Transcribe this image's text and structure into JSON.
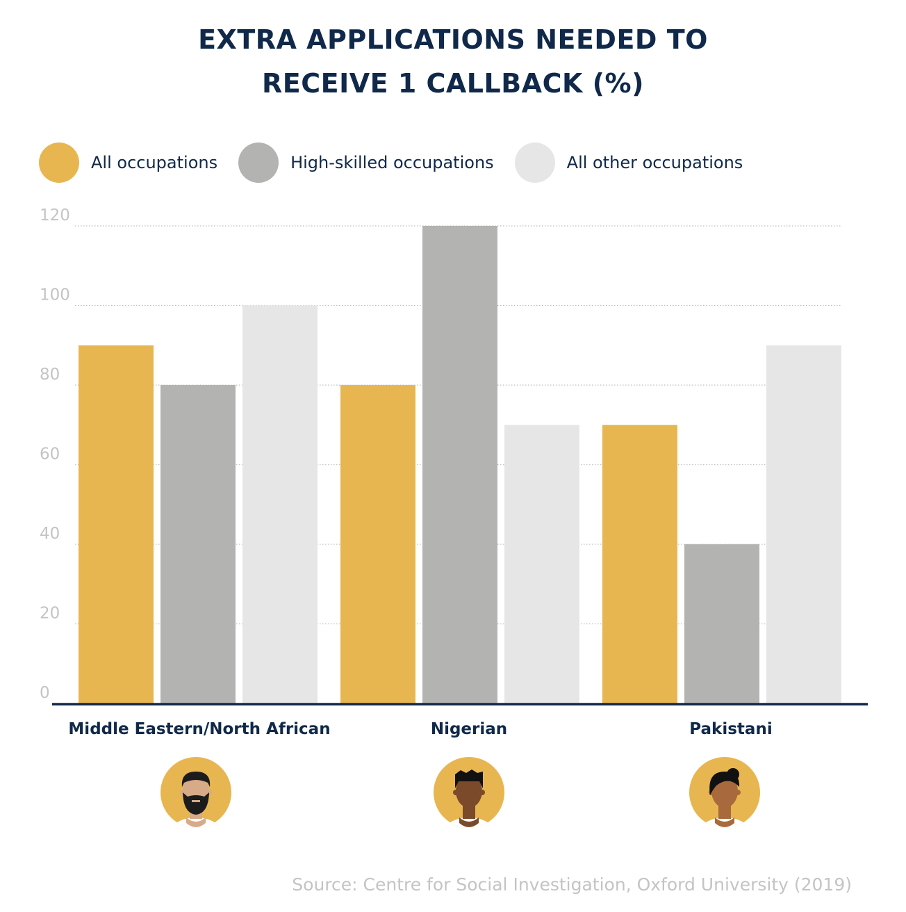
{
  "chart_data": {
    "type": "bar",
    "title_lines": [
      "EXTRA APPLICATIONS NEEDED TO",
      "RECEIVE 1 CALLBACK (%)"
    ],
    "categories": [
      "Middle Eastern/North African",
      "Nigerian",
      "Pakistani"
    ],
    "series": [
      {
        "name": "All occupations",
        "color": "#e8b650",
        "values": [
          90,
          80,
          70
        ]
      },
      {
        "name": "High-skilled occupations",
        "color": "#b3b3b2",
        "values": [
          80,
          120,
          40
        ]
      },
      {
        "name": "All other occupations",
        "color": "#e6e6e6",
        "values": [
          100,
          70,
          90
        ]
      }
    ],
    "yticks": [
      "0",
      "20",
      "40",
      "60",
      "80",
      "100",
      "120"
    ],
    "ylim": [
      0,
      120
    ],
    "grid": true,
    "legend_position": "top-left",
    "category_icons": [
      "bearded-man-avatar-icon",
      "man-avatar-icon",
      "woman-avatar-icon"
    ]
  },
  "source": "Source: Centre for Social Investigation, Oxford University (2019)",
  "colors": {
    "title": "#10294a",
    "axis": "#10294a",
    "tick": "#c4c4c4",
    "grid": "#bdbdbd",
    "avatar_bg": "#e8b650"
  }
}
